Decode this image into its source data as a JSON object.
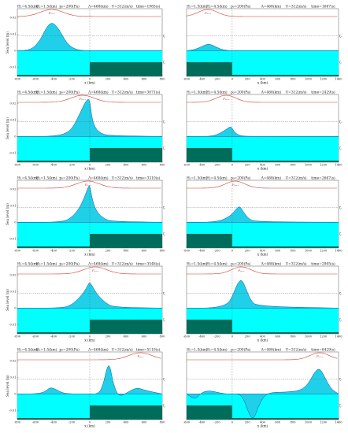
{
  "figure": {
    "title": ""
  },
  "chart_data": [
    {
      "type": "area",
      "column": "left",
      "row": 1,
      "params": {
        "h1": "H₁=4.5(km)",
        "h2": "H₂=1.5(km)",
        "p": "p₀=200(Pa)",
        "lambda": "Λ=468(km)",
        "u": "U=312(m/s)",
        "time": "time=1985(s)"
      },
      "xlim": [
        -800,
        800
      ],
      "ylim": [
        -0.025,
        0.025
      ],
      "yticks": [
        0.02,
        0.01,
        0,
        -0.01,
        -0.02
      ],
      "xticks": [
        -800,
        -600,
        -400,
        -200,
        0,
        200,
        400,
        600,
        800
      ],
      "xlabel": "x (km)",
      "ylabel": "Sea level (m)",
      "shelf_x": 0,
      "pressure_center": -420,
      "pressure_label": "Pₘₑₓ",
      "series": [
        {
          "x": [
            -800,
            -650,
            -550,
            -480,
            -420,
            -350,
            -250,
            -150,
            -50,
            0,
            100,
            800
          ],
          "y": [
            0,
            0.0003,
            0.006,
            0.014,
            0.0175,
            0.014,
            0.004,
            0.0005,
            0,
            0,
            0,
            0
          ]
        }
      ],
      "ref_lines": {
        "upper": "ζᵢ",
        "lower": "ζᵢ"
      }
    },
    {
      "type": "area",
      "column": "right",
      "row": 1,
      "params": {
        "h1": "H₁=1.5(km)",
        "h2": "H₂=4.5(km)",
        "p": "p₀=200(Pa)",
        "lambda": "Λ=468(km)",
        "u": "U=312(m/s)",
        "time": "time=1667(s)"
      },
      "xlim": [
        -600,
        1400
      ],
      "ylim": [
        -0.025,
        0.025
      ],
      "yticks": [],
      "xticks": [
        -600,
        -400,
        -200,
        0,
        200,
        400,
        600,
        800,
        1000,
        1200,
        1400
      ],
      "xlabel": "x (km)",
      "ylabel": "",
      "shelf_x": 0,
      "pressure_center": -320,
      "pressure_label": "Pₘₑₓ",
      "series": [
        {
          "x": [
            -600,
            -500,
            -400,
            -320,
            -250,
            -150,
            -60,
            0,
            100,
            1400
          ],
          "y": [
            0,
            0.0005,
            0.0025,
            0.0042,
            0.0032,
            0.0008,
            0.0001,
            0,
            0,
            0
          ]
        }
      ],
      "ref_lines": {
        "upper": "ζᵢ",
        "lower": "ζᵢ"
      }
    },
    {
      "type": "area",
      "column": "left",
      "row": 2,
      "params": {
        "h1": "H₁=4.5(km)",
        "h2": "H₂=1.5(km)",
        "p": "p₀=200(Pa)",
        "lambda": "Λ=468(km)",
        "u": "U=312(m/s)",
        "time": "time=3071(s)"
      },
      "xlim": [
        -800,
        800
      ],
      "ylim": [
        -0.025,
        0.025
      ],
      "yticks": [
        0.02,
        0.01,
        0,
        -0.01,
        -0.02
      ],
      "xticks": [
        -800,
        -600,
        -400,
        -200,
        0,
        200,
        400,
        600,
        800
      ],
      "xlabel": "x (km)",
      "ylabel": "Sea level (m)",
      "shelf_x": 0,
      "pressure_center": -80,
      "pressure_label": "Pₘₑₓ",
      "series": [
        {
          "x": [
            -800,
            -400,
            -250,
            -180,
            -100,
            -40,
            0,
            20,
            60,
            120,
            200,
            800
          ],
          "y": [
            0,
            0,
            0.002,
            0.006,
            0.015,
            0.022,
            0.023,
            0.012,
            0.005,
            0.002,
            0.0005,
            0
          ]
        }
      ],
      "ref_lines": {
        "upper": "ζᵢ",
        "lower": "ζᵢ"
      }
    },
    {
      "type": "area",
      "column": "right",
      "row": 2,
      "params": {
        "h1": "H₁=1.5(km)",
        "h2": "H₂=4.5(km)",
        "p": "p₀=200(Pa)",
        "lambda": "Λ=468(km)",
        "u": "U=312(m/s)",
        "time": "time=2429(s)"
      },
      "xlim": [
        -600,
        1400
      ],
      "ylim": [
        -0.025,
        0.025
      ],
      "yticks": [],
      "xticks": [
        -600,
        -400,
        -200,
        0,
        200,
        400,
        600,
        800,
        1000,
        1200,
        1400
      ],
      "xlabel": "x (km)",
      "ylabel": "",
      "shelf_x": 0,
      "pressure_center": -80,
      "pressure_label": "Pₘₑₓ",
      "series": [
        {
          "x": [
            -600,
            -300,
            -200,
            -120,
            -60,
            -20,
            0,
            40,
            100,
            200,
            1400
          ],
          "y": [
            0,
            0,
            0.001,
            0.003,
            0.005,
            0.006,
            0.005,
            0.002,
            0.0005,
            0,
            0
          ]
        }
      ],
      "ref_lines": {
        "upper": "ζᵢ",
        "lower": "ζᵢ"
      }
    },
    {
      "type": "area",
      "column": "left",
      "row": 3,
      "params": {
        "h1": "H₁=4.5(km)",
        "h2": "H₂=1.5(km)",
        "p": "p₀=200(Pa)",
        "lambda": "Λ=468(km)",
        "u": "U=312(m/s)",
        "time": "time=3310(s)"
      },
      "xlim": [
        -800,
        800
      ],
      "ylim": [
        -0.025,
        0.025
      ],
      "yticks": [
        0.02,
        0.01,
        0,
        -0.01,
        -0.02
      ],
      "xticks": [
        -800,
        -600,
        -400,
        -200,
        0,
        200,
        400,
        600,
        800
      ],
      "xlabel": "x (km)",
      "ylabel": "Sea level (m)",
      "shelf_x": 0,
      "pressure_center": -20,
      "pressure_label": "Pₘₑₓ",
      "series": [
        {
          "x": [
            -800,
            -300,
            -200,
            -120,
            -60,
            -20,
            0,
            30,
            80,
            160,
            250,
            800
          ],
          "y": [
            0,
            0,
            0.003,
            0.008,
            0.015,
            0.021,
            0.023,
            0.013,
            0.006,
            0.002,
            0.0005,
            0
          ]
        }
      ],
      "ref_lines": {
        "upper": "ζᵢ",
        "lower": "ζᵢ"
      }
    },
    {
      "type": "area",
      "column": "right",
      "row": 3,
      "params": {
        "h1": "H₁=1.5(km)",
        "h2": "H₂=4.5(km)",
        "p": "p₀=200(Pa)",
        "lambda": "Λ=468(km)",
        "u": "U=312(m/s)",
        "time": "time=2667(s)"
      },
      "xlim": [
        -600,
        1400
      ],
      "ylim": [
        -0.025,
        0.025
      ],
      "yticks": [],
      "xticks": [
        -600,
        -400,
        -200,
        0,
        200,
        400,
        600,
        800,
        1000,
        1200,
        1400
      ],
      "xlabel": "x (km)",
      "ylabel": "",
      "shelf_x": 0,
      "pressure_center": 40,
      "pressure_label": "Pₘₑₓ",
      "series": [
        {
          "x": [
            -600,
            -300,
            -150,
            -60,
            0,
            50,
            100,
            150,
            220,
            300,
            1400
          ],
          "y": [
            0,
            0,
            0.001,
            0.003,
            0.005,
            0.008,
            0.01,
            0.006,
            0.002,
            0.0003,
            0
          ]
        }
      ],
      "ref_lines": {
        "upper": "ζᵢ",
        "lower": "ζᵢ"
      }
    },
    {
      "type": "area",
      "column": "left",
      "row": 4,
      "params": {
        "h1": "H₁=4.5(km)",
        "h2": "H₂=1.5(km)",
        "p": "p₀=200(Pa)",
        "lambda": "Λ=468(km)",
        "u": "U=312(m/s)",
        "time": "time=3548(s)"
      },
      "xlim": [
        -800,
        800
      ],
      "ylim": [
        -0.025,
        0.025
      ],
      "yticks": [
        0.02,
        0.01,
        0,
        -0.01,
        -0.02
      ],
      "xticks": [
        -800,
        -600,
        -400,
        -200,
        0,
        200,
        400,
        600,
        800
      ],
      "xlabel": "x (km)",
      "ylabel": "Sea level (m)",
      "shelf_x": 0,
      "pressure_center": 60,
      "pressure_label": "Pₘₑₓ",
      "series": [
        {
          "x": [
            -800,
            -300,
            -200,
            -120,
            -60,
            -20,
            0,
            40,
            100,
            180,
            260,
            800
          ],
          "y": [
            0,
            0,
            0.002,
            0.006,
            0.01,
            0.014,
            0.016,
            0.012,
            0.007,
            0.003,
            0.0005,
            0
          ]
        }
      ],
      "ref_lines": {
        "upper": "ζᵢ",
        "lower": "ζᵢ"
      }
    },
    {
      "type": "area",
      "column": "right",
      "row": 4,
      "params": {
        "h1": "H₁=1.5(km)",
        "h2": "H₂=4.5(km)",
        "p": "p₀=200(Pa)",
        "lambda": "Λ=468(km)",
        "u": "U=312(m/s)",
        "time": "time=2905(s)"
      },
      "xlim": [
        -600,
        1400
      ],
      "ylim": [
        -0.025,
        0.025
      ],
      "yticks": [],
      "xticks": [
        -600,
        -400,
        -200,
        0,
        200,
        400,
        600,
        800,
        1000,
        1200,
        1400
      ],
      "xlabel": "x (km)",
      "ylabel": "",
      "shelf_x": 0,
      "pressure_center": 120,
      "pressure_label": "Pₘₑₓ",
      "series": [
        {
          "x": [
            -600,
            -300,
            -150,
            -50,
            0,
            60,
            120,
            180,
            240,
            320,
            1400
          ],
          "y": [
            0,
            0,
            0.001,
            0.003,
            0.007,
            0.014,
            0.018,
            0.012,
            0.005,
            0.001,
            0
          ]
        }
      ],
      "ref_lines": {
        "upper": "ζᵢ",
        "lower": "ζᵢ"
      }
    },
    {
      "type": "area",
      "column": "left",
      "row": 5,
      "params": {
        "h1": "H₁=4.5(km)",
        "h2": "H₂=1.5(km)",
        "p": "p₀=200(Pa)",
        "lambda": "Λ=468(km)",
        "u": "U=312(m/s)",
        "time": "time=5119(s)"
      },
      "xlim": [
        -800,
        800
      ],
      "ylim": [
        -0.025,
        0.025
      ],
      "yticks": [
        0.02,
        0.01,
        0,
        -0.01,
        -0.02
      ],
      "xticks": [
        -800,
        -600,
        -400,
        -200,
        0,
        200,
        400,
        600,
        800
      ],
      "xlabel": "x (km)",
      "ylabel": "Sea level (m)",
      "shelf_x": 0,
      "pressure_center": 560,
      "pressure_label": "Pₘₑₓ",
      "series": [
        {
          "x": [
            -800,
            -600,
            -500,
            -440,
            -380,
            -300,
            -200,
            -80,
            0,
            100,
            150,
            190,
            220,
            260,
            320,
            420,
            520,
            620,
            800
          ],
          "y": [
            0,
            0,
            0.001,
            0.004,
            0.003,
            0.0005,
            0,
            0,
            0,
            0,
            0.006,
            0.016,
            0.018,
            0.006,
            -0.002,
            0.001,
            0.004,
            0.002,
            0
          ]
        }
      ],
      "ref_lines": {
        "upper": "ζᵢ",
        "lower": "ζᵢ"
      }
    },
    {
      "type": "area",
      "column": "right",
      "row": 5,
      "params": {
        "h1": "H₁=1.5(km)",
        "h2": "H₂=4.5(km)",
        "p": "p₀=200(Pa)",
        "lambda": "Λ=468(km)",
        "u": "U=312(m/s)",
        "time": "time=6429(s)"
      },
      "xlim": [
        -600,
        1400
      ],
      "ylim": [
        -0.025,
        0.025
      ],
      "yticks": [],
      "xticks": [
        -600,
        -400,
        -200,
        0,
        200,
        400,
        600,
        800,
        1000,
        1200,
        1400
      ],
      "xlabel": "x (km)",
      "ylabel": "",
      "shelf_x": 0,
      "pressure_center": 1150,
      "pressure_label": "Pₘₑₓ",
      "series": [
        {
          "x": [
            -600,
            -540,
            -480,
            -400,
            -300,
            -200,
            -100,
            0,
            100,
            160,
            220,
            280,
            340,
            420,
            520,
            700,
            900,
            1000,
            1080,
            1150,
            1220,
            1300,
            1400
          ],
          "y": [
            0,
            -0.002,
            -0.003,
            0.001,
            0.002,
            0.001,
            0,
            0,
            0,
            -0.004,
            -0.012,
            -0.016,
            -0.008,
            -0.001,
            0.001,
            0.001,
            0.002,
            0.006,
            0.013,
            0.016,
            0.01,
            0.003,
            0
          ]
        }
      ],
      "ref_lines": {
        "upper": "ζᵢ",
        "lower": "ζᵢ"
      }
    }
  ]
}
